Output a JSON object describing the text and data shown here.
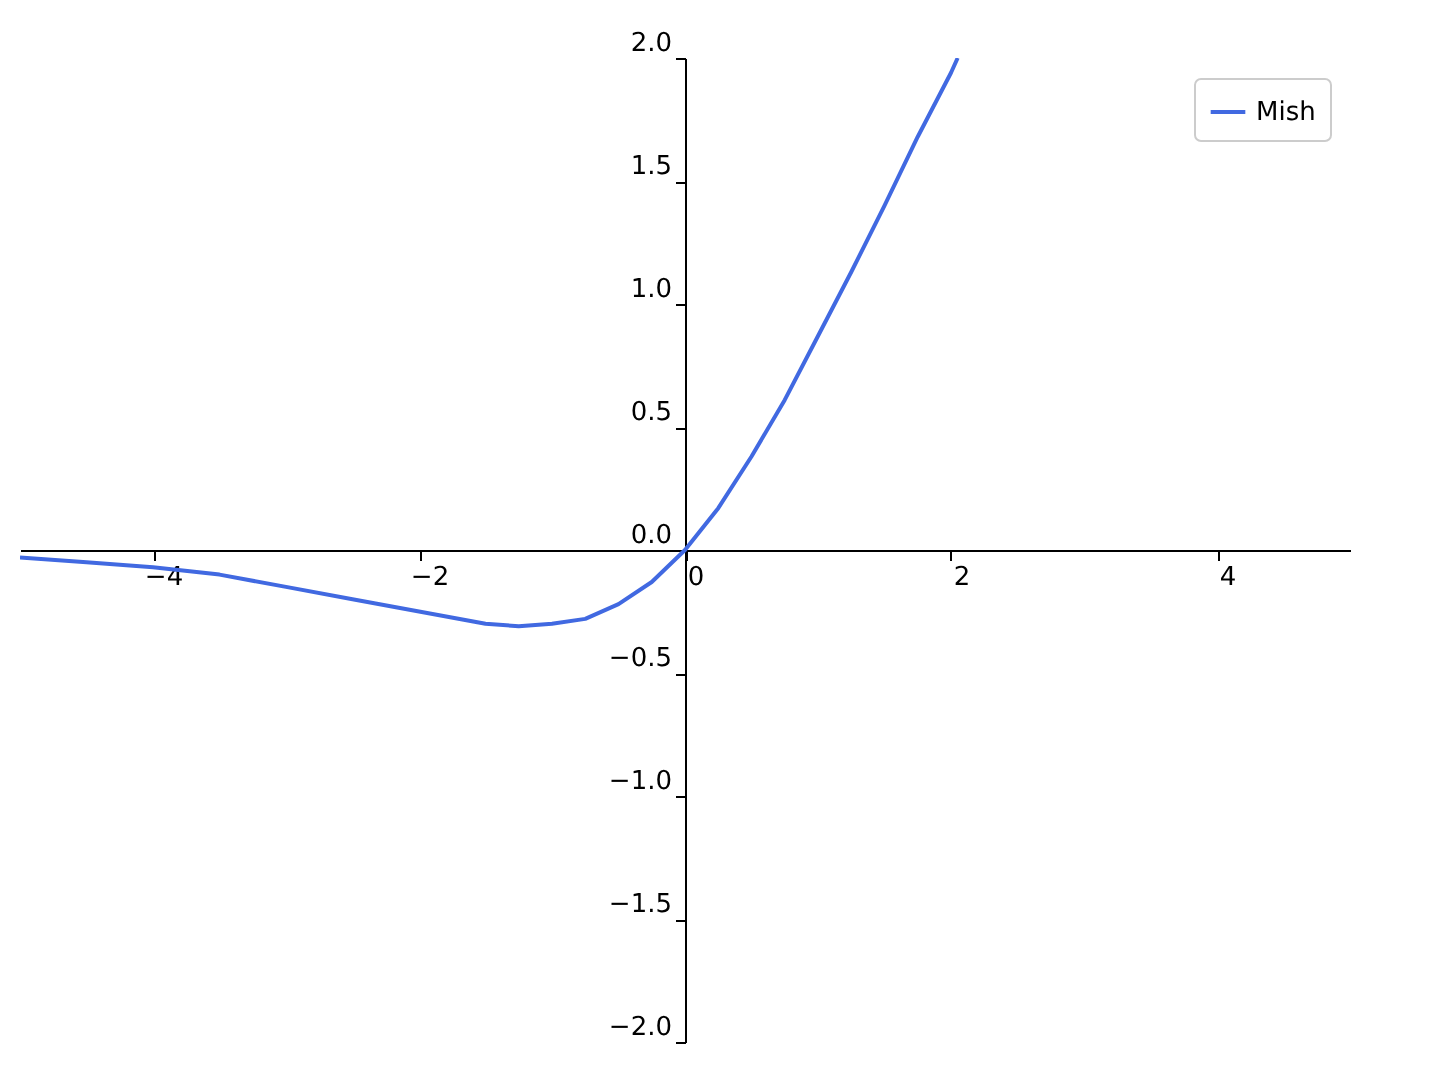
{
  "chart_data": {
    "type": "line",
    "x": [
      -5,
      -4.5,
      -4,
      -3.5,
      -3,
      -2.5,
      -2,
      -1.5,
      -1.25,
      -1,
      -0.75,
      -0.5,
      -0.25,
      0,
      0.25,
      0.5,
      0.75,
      1,
      1.25,
      1.5,
      1.75,
      2,
      2.05
    ],
    "series": [
      {
        "name": "Mish",
        "color": "#4169e1",
        "values": [
          -0.03,
          -0.05,
          -0.07,
          -0.1,
          -0.15,
          -0.2,
          -0.25,
          -0.3,
          -0.31,
          -0.3,
          -0.28,
          -0.22,
          -0.13,
          0,
          0.17,
          0.38,
          0.61,
          0.87,
          1.13,
          1.4,
          1.68,
          1.94,
          2.0
        ]
      }
    ],
    "xlim": [
      -5,
      5
    ],
    "ylim": [
      -2,
      2
    ],
    "xticks": [
      {
        "value": -4,
        "label": "−4"
      },
      {
        "value": -2,
        "label": "−2"
      },
      0,
      2,
      4
    ],
    "yticks": [
      {
        "value": -2,
        "label": "−2.0"
      },
      {
        "value": -1.5,
        "label": "−1.5"
      },
      {
        "value": -1,
        "label": "−1.0"
      },
      {
        "value": -0.5,
        "label": "−0.5"
      },
      {
        "value": 0,
        "label": "0.0"
      },
      {
        "value": 0.5,
        "label": "0.5"
      },
      {
        "value": 1,
        "label": "1.0"
      },
      {
        "value": 1.5,
        "label": "1.5"
      },
      {
        "value": 2,
        "label": "2.0"
      }
    ],
    "legend": "top right",
    "grid": false,
    "line_style": "solid",
    "marker": "none"
  }
}
